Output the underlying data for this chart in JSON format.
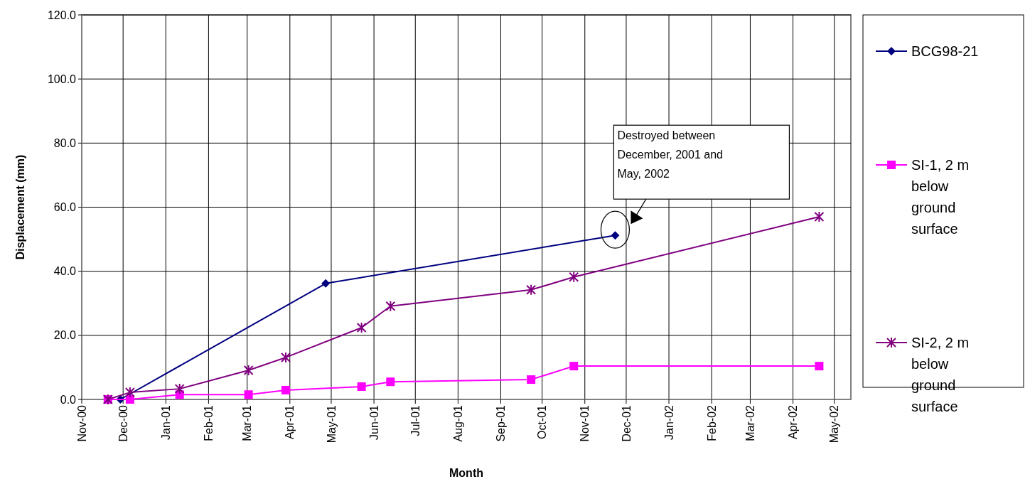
{
  "chart_data": {
    "type": "line",
    "xlabel": "Month",
    "ylabel": "Displacement (mm)",
    "xlim": [
      "2000-11-01",
      "2002-05-13"
    ],
    "xticks": [
      {
        "value": "2000-11-01",
        "label": "Nov-00"
      },
      {
        "value": "2000-12-01",
        "label": "Dec-00"
      },
      {
        "value": "2001-01-01",
        "label": "Jan-01"
      },
      {
        "value": "2001-02-01",
        "label": "Feb-01"
      },
      {
        "value": "2001-03-01",
        "label": "Mar-01"
      },
      {
        "value": "2001-04-01",
        "label": "Apr-01"
      },
      {
        "value": "2001-05-01",
        "label": "May-01"
      },
      {
        "value": "2001-06-01",
        "label": "Jun-01"
      },
      {
        "value": "2001-07-01",
        "label": "Jul-01"
      },
      {
        "value": "2001-08-01",
        "label": "Aug-01"
      },
      {
        "value": "2001-09-01",
        "label": "Sep-01"
      },
      {
        "value": "2001-10-01",
        "label": "Oct-01"
      },
      {
        "value": "2001-11-01",
        "label": "Nov-01"
      },
      {
        "value": "2001-12-01",
        "label": "Dec-01"
      },
      {
        "value": "2002-01-01",
        "label": "Jan-02"
      },
      {
        "value": "2002-02-01",
        "label": "Feb-02"
      },
      {
        "value": "2002-03-01",
        "label": "Mar-02"
      },
      {
        "value": "2002-04-01",
        "label": "Apr-02"
      },
      {
        "value": "2002-05-01",
        "label": "May-02"
      }
    ],
    "ylim": [
      0,
      120
    ],
    "yticks": [
      {
        "value": 0,
        "label": "0.0"
      },
      {
        "value": 20,
        "label": "20.0"
      },
      {
        "value": 40,
        "label": "40.0"
      },
      {
        "value": 60,
        "label": "60.0"
      },
      {
        "value": 80,
        "label": "80.0"
      },
      {
        "value": 100,
        "label": "100.0"
      },
      {
        "value": 120,
        "label": "120.0"
      }
    ],
    "grid": true,
    "legend": "right",
    "line_style": "solid",
    "series": [
      {
        "name": "BCG98-21",
        "color": "#000080",
        "marker": "diamond",
        "x": [
          "2000-11-29",
          "2001-04-27",
          "2001-11-23"
        ],
        "values": [
          0,
          36.2,
          51.2
        ]
      },
      {
        "name": "SI-1, 2 m below ground surface",
        "color": "#ff00ff",
        "marker": "square",
        "x": [
          "2000-11-20",
          "2000-12-06",
          "2001-01-11",
          "2001-03-02",
          "2001-03-29",
          "2001-05-23",
          "2001-06-13",
          "2001-09-23",
          "2001-10-24",
          "2002-04-20"
        ],
        "values": [
          0,
          0,
          1.5,
          1.5,
          2.9,
          4.0,
          5.5,
          6.2,
          10.4,
          10.4
        ]
      },
      {
        "name": "SI-2, 2 m below ground surface",
        "color": "#800080",
        "marker": "cross",
        "x": [
          "2000-11-20",
          "2000-12-06",
          "2001-01-11",
          "2001-03-02",
          "2001-03-29",
          "2001-05-23",
          "2001-06-13",
          "2001-09-23",
          "2001-10-24",
          "2002-04-20"
        ],
        "values": [
          0,
          2.2,
          3.3,
          9.1,
          13.1,
          22.4,
          29.1,
          34.2,
          38.2,
          57.0
        ]
      }
    ],
    "annotations": [
      "Destroyed between December, 2001 and May, 2002"
    ]
  }
}
